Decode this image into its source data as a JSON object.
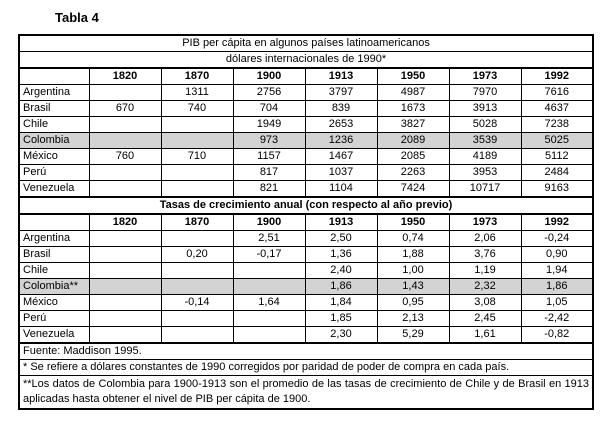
{
  "page_title": "Tabla 4",
  "colors": {
    "highlight_row": "#d3d3d3",
    "border": "#000000",
    "background": "#ffffff"
  },
  "table": {
    "years": [
      "1820",
      "1870",
      "1900",
      "1913",
      "1950",
      "1973",
      "1992"
    ],
    "section1": {
      "title": "PIB per cápita en algunos países latinoamericanos",
      "subtitle": "dólares internacionales de 1990*",
      "rows": [
        {
          "country": "Argentina",
          "highlight": false,
          "values": [
            "",
            "1311",
            "2756",
            "3797",
            "4987",
            "7970",
            "7616"
          ]
        },
        {
          "country": "Brasil",
          "highlight": false,
          "values": [
            "670",
            "740",
            "704",
            "839",
            "1673",
            "3913",
            "4637"
          ]
        },
        {
          "country": "Chile",
          "highlight": false,
          "values": [
            "",
            "",
            "1949",
            "2653",
            "3827",
            "5028",
            "7238"
          ]
        },
        {
          "country": "Colombia",
          "highlight": true,
          "values": [
            "",
            "",
            "973",
            "1236",
            "2089",
            "3539",
            "5025"
          ]
        },
        {
          "country": "México",
          "highlight": false,
          "values": [
            "760",
            "710",
            "1157",
            "1467",
            "2085",
            "4189",
            "5112"
          ]
        },
        {
          "country": "Perú",
          "highlight": false,
          "values": [
            "",
            "",
            "817",
            "1037",
            "2263",
            "3953",
            "2484"
          ]
        },
        {
          "country": "Venezuela",
          "highlight": false,
          "values": [
            "",
            "",
            "821",
            "1104",
            "7424",
            "10717",
            "9163"
          ]
        }
      ]
    },
    "section2": {
      "title": "Tasas de crecimiento anual (con respecto al año previo)",
      "rows": [
        {
          "country": "Argentina",
          "highlight": false,
          "values": [
            "",
            "",
            "2,51",
            "2,50",
            "0,74",
            "2,06",
            "-0,24"
          ]
        },
        {
          "country": "Brasil",
          "highlight": false,
          "values": [
            "",
            "0,20",
            "-0,17",
            "1,36",
            "1,88",
            "3,76",
            "0,90"
          ]
        },
        {
          "country": "Chile",
          "highlight": false,
          "values": [
            "",
            "",
            "",
            "2,40",
            "1,00",
            "1,19",
            "1,94"
          ]
        },
        {
          "country": "Colombia**",
          "highlight": true,
          "values": [
            "",
            "",
            "",
            "1,86",
            "1,43",
            "2,32",
            "1,86"
          ]
        },
        {
          "country": "México",
          "highlight": false,
          "values": [
            "",
            "-0,14",
            "1,64",
            "1,84",
            "0,95",
            "3,08",
            "1,05"
          ]
        },
        {
          "country": "Perú",
          "highlight": false,
          "values": [
            "",
            "",
            "",
            "1,85",
            "2,13",
            "2,45",
            "-2,42"
          ]
        },
        {
          "country": "Venezuela",
          "highlight": false,
          "values": [
            "",
            "",
            "",
            "2,30",
            "5,29",
            "1,61",
            "-0,82"
          ]
        }
      ]
    },
    "footnotes": [
      "Fuente: Maddison 1995.",
      "* Se refiere a dólares constantes de 1990 corregidos por paridad de poder de compra en cada país.",
      "**Los datos de Colombia para 1900-1913 son el promedio de las tasas de crecimiento de Chile y de Brasil en 1913 aplicadas hasta obtener el nivel de PIB per cápita de 1900."
    ]
  }
}
